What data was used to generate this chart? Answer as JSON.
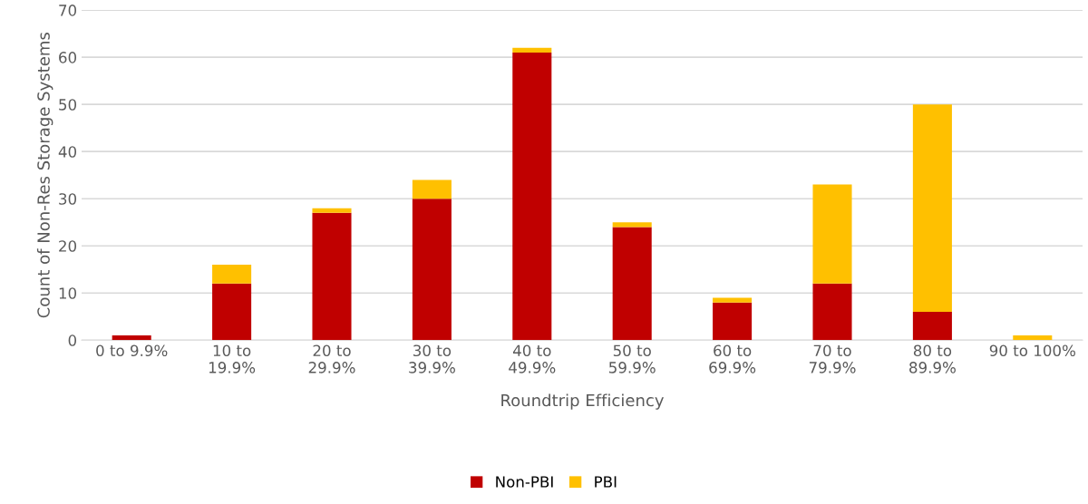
{
  "chart_data": {
    "type": "bar",
    "stacked": true,
    "xlabel": "Roundtrip Efficiency",
    "ylabel": "Count of Non-Res Storage Systems",
    "categories": [
      "0 to 9.9%",
      "10 to\n19.9%",
      "20 to\n29.9%",
      "30 to\n39.9%",
      "40 to\n49.9%",
      "50 to\n59.9%",
      "60 to\n69.9%",
      "70 to\n79.9%",
      "80 to\n89.9%",
      "90 to 100%"
    ],
    "series": [
      {
        "name": "Non-PBI",
        "color": "#c00000",
        "values": [
          1,
          12,
          27,
          30,
          61,
          24,
          8,
          12,
          6,
          0
        ]
      },
      {
        "name": "PBI",
        "color": "#ffc000",
        "values": [
          0,
          4,
          1,
          4,
          1,
          1,
          1,
          21,
          44,
          1
        ]
      }
    ],
    "ylim": [
      0,
      70
    ],
    "yticks": [
      0,
      10,
      20,
      30,
      40,
      50,
      60,
      70
    ],
    "grid": "y",
    "legend": "bottom"
  }
}
